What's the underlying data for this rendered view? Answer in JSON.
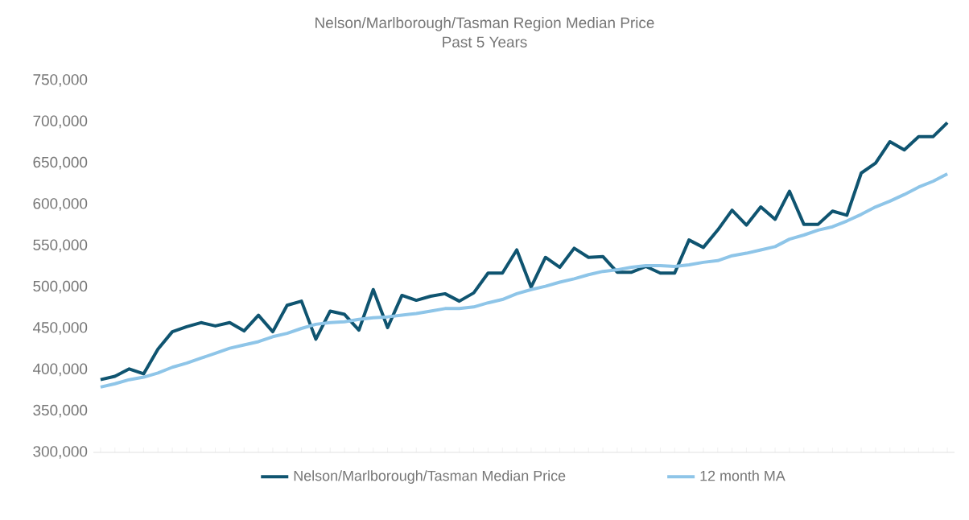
{
  "chart_data": {
    "type": "line",
    "title": "Nelson/Marlborough/Tasman Region Median Price",
    "subtitle": "Past 5 Years",
    "categories": [
      null,
      null,
      null,
      null,
      null,
      null,
      null,
      null,
      null,
      null,
      null,
      null,
      null,
      null,
      null,
      null,
      null,
      null,
      null,
      null,
      null,
      null,
      null,
      null,
      null,
      null,
      null,
      null,
      null,
      null,
      null,
      null,
      null,
      null,
      null,
      null,
      null,
      null,
      null,
      null,
      null,
      null,
      null,
      null,
      null,
      null,
      null,
      null,
      null,
      null,
      null,
      null,
      null,
      null,
      null,
      null,
      null,
      null,
      null,
      null
    ],
    "series": [
      {
        "name": "Nelson/Marlborough/Tasman Median Price",
        "color": "#0f5470",
        "values": [
          388000,
          392000,
          401000,
          395000,
          425000,
          446000,
          452000,
          457000,
          453000,
          457000,
          447000,
          466000,
          446000,
          478000,
          483000,
          437000,
          471000,
          467000,
          448000,
          497000,
          451000,
          490000,
          484000,
          489000,
          492000,
          483000,
          493000,
          517000,
          517000,
          545000,
          500000,
          536000,
          524000,
          547000,
          536000,
          537000,
          518000,
          518000,
          525000,
          517000,
          517000,
          557000,
          548000,
          569000,
          593000,
          575000,
          597000,
          582000,
          616000,
          576000,
          576000,
          592000,
          587000,
          638000,
          650000,
          676000,
          666000,
          682000,
          682000,
          699000
        ]
      },
      {
        "name": "12 month MA",
        "color": "#8ec5e8",
        "values": [
          379000,
          383000,
          388000,
          391000,
          396000,
          403000,
          408000,
          414000,
          420000,
          426000,
          430000,
          434000,
          440000,
          444000,
          450000,
          455000,
          457000,
          458000,
          461000,
          463000,
          464000,
          466000,
          468000,
          471000,
          474000,
          474000,
          476000,
          481000,
          485000,
          492000,
          497000,
          501000,
          506000,
          510000,
          515000,
          519000,
          521000,
          524000,
          526000,
          526000,
          525000,
          527000,
          530000,
          532000,
          538000,
          541000,
          545000,
          549000,
          558000,
          563000,
          569000,
          573000,
          580000,
          588000,
          597000,
          604000,
          612000,
          621000,
          628000,
          637000
        ]
      }
    ],
    "ylim": [
      300000,
      750000
    ],
    "yticks": [
      {
        "value": 300000,
        "label": "300,000"
      },
      {
        "value": 350000,
        "label": "350,000"
      },
      {
        "value": 400000,
        "label": "400,000"
      },
      {
        "value": 450000,
        "label": "450,000"
      },
      {
        "value": 500000,
        "label": "500,000"
      },
      {
        "value": 550000,
        "label": "550,000"
      },
      {
        "value": 600000,
        "label": "600,000"
      },
      {
        "value": 650000,
        "label": "650,000"
      },
      {
        "value": 700000,
        "label": "700,000"
      },
      {
        "value": 750000,
        "label": "750,000"
      }
    ],
    "tick_labels": "y",
    "legend": "bottom",
    "grid": false,
    "marker": "none",
    "line_style": "solid"
  }
}
